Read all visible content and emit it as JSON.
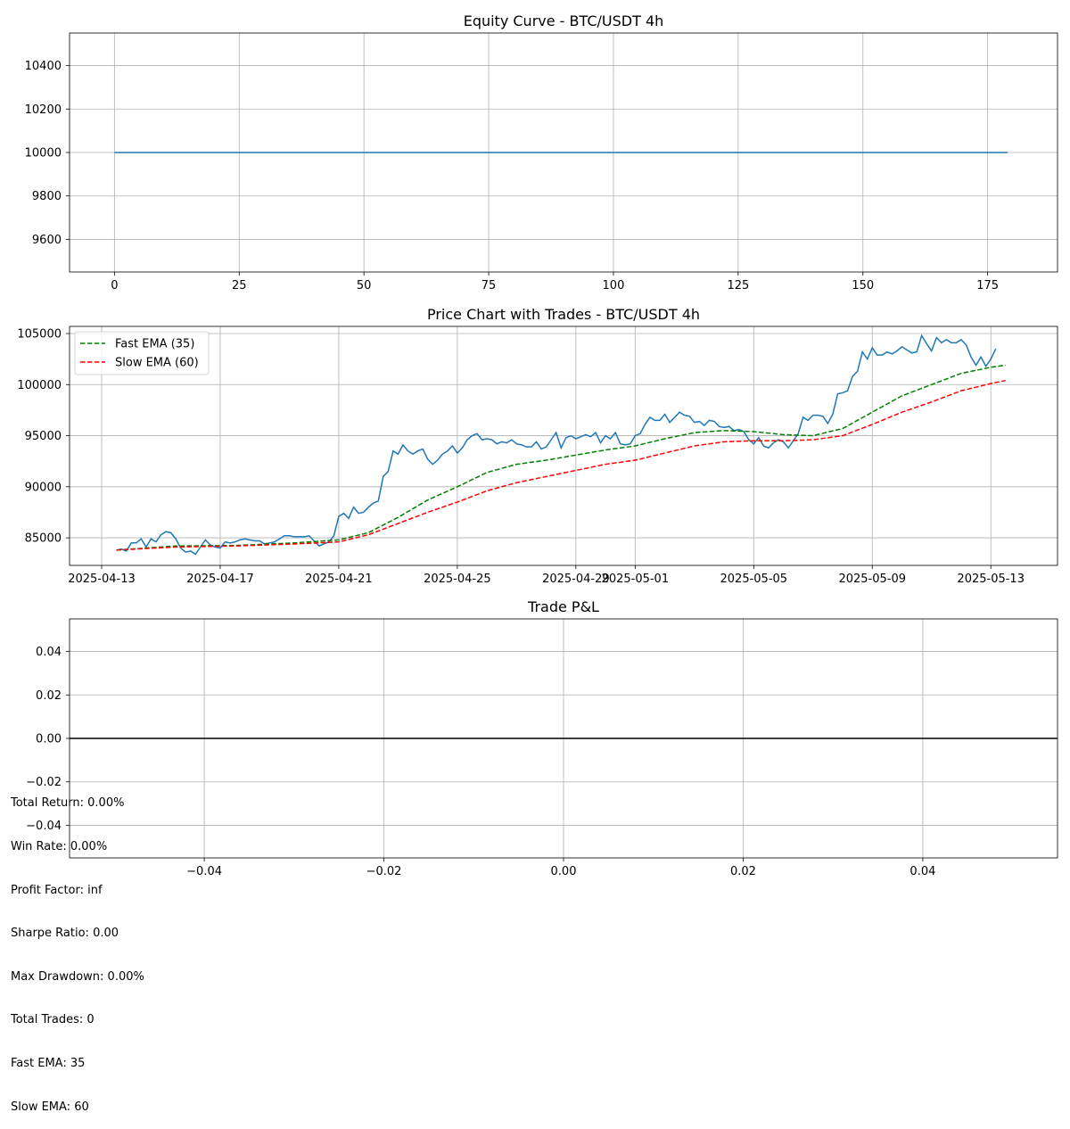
{
  "chart_data": [
    {
      "type": "line",
      "title": "Equity Curve - BTC/USDT 4h",
      "xlabel": "",
      "ylabel": "",
      "xlim": [
        -9,
        189
      ],
      "ylim": [
        9450,
        10550
      ],
      "xticks": [
        0,
        25,
        50,
        75,
        100,
        125,
        150,
        175
      ],
      "yticks": [
        9600,
        9800,
        10000,
        10200,
        10400
      ],
      "grid": true,
      "series": [
        {
          "x": [
            0,
            179
          ],
          "y": [
            10000,
            10000
          ],
          "color": "#1f77b4"
        }
      ]
    },
    {
      "type": "line",
      "title": "Price Chart with Trades - BTC/USDT 4h",
      "xlabel": "",
      "ylabel": "",
      "xlim": [
        "2025-04-11T22:00",
        "2025-05-15T06:00"
      ],
      "ylim": [
        82300,
        105700
      ],
      "xticks": [
        "2025-04-13",
        "2025-04-17",
        "2025-04-21",
        "2025-04-25",
        "2025-04-29",
        "2025-05-01",
        "2025-05-05",
        "2025-05-09",
        "2025-05-13"
      ],
      "yticks": [
        85000,
        90000,
        95000,
        100000,
        105000
      ],
      "grid": true,
      "legend_position": "upper-left",
      "price_series": {
        "color": "#1f77b4",
        "start": "2025-04-13T12:00",
        "step_hours": 4,
        "values": [
          83800,
          83900,
          83700,
          84500,
          84500,
          84900,
          84100,
          84900,
          84600,
          85300,
          85600,
          85500,
          84900,
          84000,
          83600,
          83700,
          83400,
          84100,
          84800,
          84300,
          84100,
          84000,
          84600,
          84500,
          84600,
          84800,
          84900,
          84800,
          84700,
          84700,
          84400,
          84500,
          84600,
          84900,
          85200,
          85200,
          85100,
          85100,
          85100,
          85200,
          84700,
          84200,
          84400,
          84600,
          85200,
          87100,
          87400,
          86900,
          88000,
          87400,
          87500,
          88000,
          88400,
          88600,
          91000,
          91500,
          93500,
          93200,
          94100,
          93500,
          93200,
          93500,
          93700,
          92700,
          92200,
          92600,
          93200,
          93500,
          94000,
          93300,
          93800,
          94600,
          95000,
          95200,
          94600,
          94700,
          94600,
          94200,
          94400,
          94300,
          94600,
          94200,
          94100,
          93900,
          93900,
          94400,
          93700,
          93900,
          94600,
          95300,
          93800,
          94800,
          95000,
          94700,
          94900,
          95100,
          94900,
          95300,
          94300,
          95000,
          94700,
          95300,
          94200,
          94100,
          94200,
          95000,
          95200,
          96100,
          96800,
          96500,
          96500,
          97100,
          96300,
          96800,
          97300,
          97000,
          96900,
          96300,
          96400,
          96000,
          96500,
          96400,
          95900,
          95800,
          95900,
          95500,
          95600,
          95400,
          94600,
          94200,
          94800,
          94000,
          93800,
          94300,
          94600,
          94400,
          93800,
          94500,
          95200,
          96800,
          96500,
          97000,
          97000,
          96900,
          96200,
          97100,
          99100,
          99200,
          99400,
          100800,
          101300,
          103200,
          102500,
          103600,
          102900,
          102900,
          103200,
          103000,
          103300,
          103700,
          103400,
          103100,
          103200,
          104800,
          104000,
          103300,
          104600,
          104100,
          104400,
          104100,
          104100,
          104400,
          103900,
          102700,
          101900,
          102700,
          101800,
          102500,
          103500
        ]
      },
      "series": [
        {
          "name": "Fast EMA (35)",
          "color": "#008000",
          "style": "dashed",
          "points": [
            [
              "2025-04-13T12:00",
              83800
            ],
            [
              "2025-04-15T12:00",
              84200
            ],
            [
              "2025-04-17T12:00",
              84250
            ],
            [
              "2025-04-19T12:00",
              84500
            ],
            [
              "2025-04-21T00:00",
              84800
            ],
            [
              "2025-04-22T00:00",
              85500
            ],
            [
              "2025-04-23T00:00",
              87000
            ],
            [
              "2025-04-24T00:00",
              88700
            ],
            [
              "2025-04-25T00:00",
              90000
            ],
            [
              "2025-04-26T00:00",
              91400
            ],
            [
              "2025-04-27T00:00",
              92200
            ],
            [
              "2025-04-28T00:00",
              92600
            ],
            [
              "2025-04-29T00:00",
              93100
            ],
            [
              "2025-04-30T00:00",
              93600
            ],
            [
              "2025-05-01T00:00",
              94000
            ],
            [
              "2025-05-02T00:00",
              94700
            ],
            [
              "2025-05-03T00:00",
              95300
            ],
            [
              "2025-05-04T00:00",
              95500
            ],
            [
              "2025-05-05T00:00",
              95400
            ],
            [
              "2025-05-06T00:00",
              95100
            ],
            [
              "2025-05-07T00:00",
              95000
            ],
            [
              "2025-05-08T00:00",
              95700
            ],
            [
              "2025-05-09T00:00",
              97300
            ],
            [
              "2025-05-10T00:00",
              98900
            ],
            [
              "2025-05-11T00:00",
              100000
            ],
            [
              "2025-05-12T00:00",
              101100
            ],
            [
              "2025-05-13T00:00",
              101700
            ],
            [
              "2025-05-13T12:00",
              101900
            ]
          ]
        },
        {
          "name": "Slow EMA (60)",
          "color": "#ff0000",
          "style": "dashed",
          "points": [
            [
              "2025-04-13T12:00",
              83800
            ],
            [
              "2025-04-15T12:00",
              84100
            ],
            [
              "2025-04-17T12:00",
              84200
            ],
            [
              "2025-04-19T12:00",
              84400
            ],
            [
              "2025-04-21T00:00",
              84600
            ],
            [
              "2025-04-22T00:00",
              85300
            ],
            [
              "2025-04-23T00:00",
              86400
            ],
            [
              "2025-04-24T00:00",
              87500
            ],
            [
              "2025-04-25T00:00",
              88500
            ],
            [
              "2025-04-26T00:00",
              89600
            ],
            [
              "2025-04-27T00:00",
              90400
            ],
            [
              "2025-04-28T00:00",
              91000
            ],
            [
              "2025-04-29T00:00",
              91600
            ],
            [
              "2025-04-30T00:00",
              92200
            ],
            [
              "2025-05-01T00:00",
              92600
            ],
            [
              "2025-05-02T00:00",
              93300
            ],
            [
              "2025-05-03T00:00",
              94000
            ],
            [
              "2025-05-04T00:00",
              94400
            ],
            [
              "2025-05-05T00:00",
              94500
            ],
            [
              "2025-05-06T00:00",
              94500
            ],
            [
              "2025-05-07T00:00",
              94600
            ],
            [
              "2025-05-08T00:00",
              95000
            ],
            [
              "2025-05-09T00:00",
              96100
            ],
            [
              "2025-05-10T00:00",
              97300
            ],
            [
              "2025-05-11T00:00",
              98300
            ],
            [
              "2025-05-12T00:00",
              99400
            ],
            [
              "2025-05-13T00:00",
              100100
            ],
            [
              "2025-05-13T12:00",
              100400
            ]
          ]
        }
      ]
    },
    {
      "type": "bar",
      "title": "Trade P&L",
      "xlabel": "",
      "ylabel": "",
      "xlim": [
        -0.055,
        0.055
      ],
      "ylim": [
        -0.055,
        0.055
      ],
      "xticks": [
        -0.04,
        -0.02,
        0.0,
        0.02,
        0.04
      ],
      "yticks": [
        -0.04,
        -0.02,
        0.0,
        0.02,
        0.04
      ],
      "ytick_labels": [
        "−0.04",
        "−0.02",
        "0.00",
        "0.02",
        "0.04"
      ],
      "xtick_labels": [
        "−0.04",
        "−0.02",
        "0.00",
        "0.02",
        "0.04"
      ],
      "grid": true,
      "zero_line": 0,
      "values": []
    }
  ],
  "stats": [
    "Total Return: 0.00%",
    "Win Rate: 0.00%",
    "Profit Factor: inf",
    "Sharpe Ratio: 0.00",
    "Max Drawdown: 0.00%",
    "Total Trades: 0",
    "Fast EMA: 35",
    "Slow EMA: 60"
  ]
}
